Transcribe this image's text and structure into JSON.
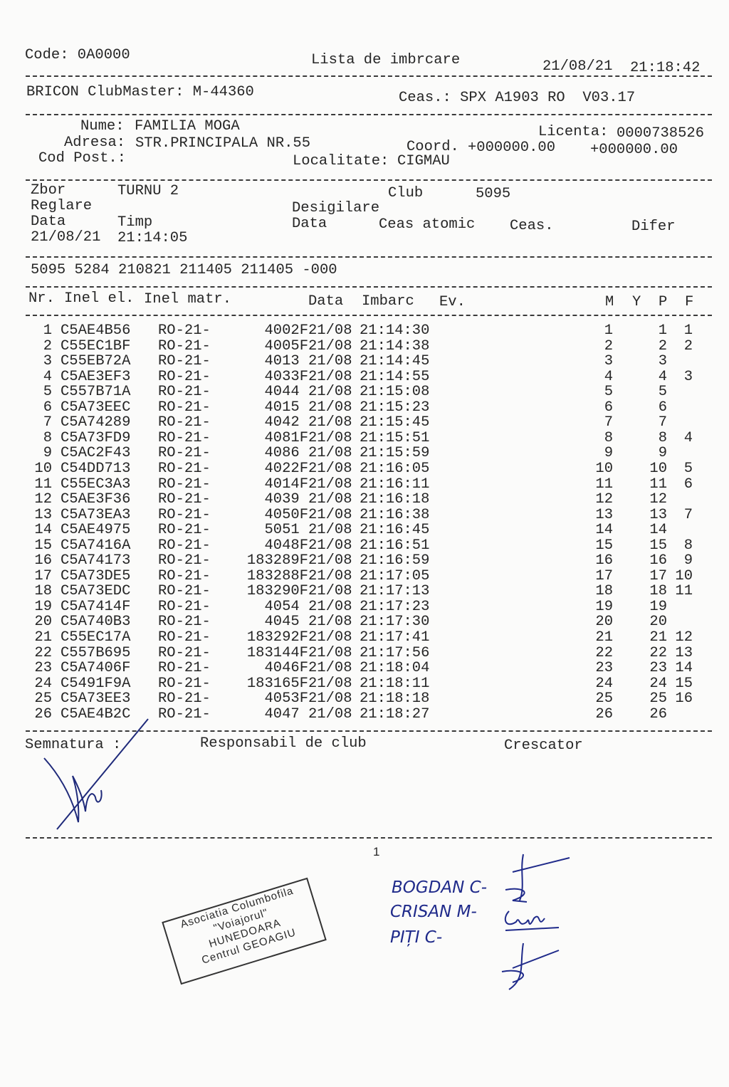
{
  "header": {
    "code": "Code: 0A0000",
    "title": "Lista de imbrcare",
    "date": "21/08/21",
    "time": "21:18:42",
    "clubmaster": "BRICON ClubMaster: M-44360",
    "clock": "Ceas.: SPX A1903 RO  V03.17"
  },
  "owner": {
    "name_label": "Nume:",
    "name": "FAMILIA MOGA",
    "license_label": "Licenta:",
    "license": "0000738526",
    "address_label": "Adresa:",
    "address": "STR.PRINCIPALA NR.55",
    "coord_label": "Coord.",
    "coord_x": "+000000.00",
    "coord_y": "+000000.00",
    "postcode_label": "Cod Post.:",
    "locality_label": "Localitate:",
    "locality": "CIGMAU"
  },
  "flight": {
    "flight_label": "Zbor",
    "flight": "TURNU 2",
    "club_label": "Club",
    "club": "5095",
    "setting_label": "Reglare",
    "unseal_label": "Desigilare",
    "date_label": "Data",
    "time_label": "Timp",
    "unseal_date_label": "Data",
    "atomic_label": "Ceas atomic",
    "clock_label": "Ceas.",
    "diff_label": "Difer",
    "setting_date": "21/08/21",
    "setting_time": "21:14:05",
    "code_line": "5095 5284 210821 211405 211405 -000"
  },
  "table": {
    "columns": [
      "Nr.",
      "Inel el.",
      "Inel matr.",
      "Data",
      "Imbarc",
      "Ev.",
      "M",
      "Y",
      "P",
      "F"
    ],
    "rows": [
      {
        "nr": "1",
        "ring": "C5AE4B56",
        "prefix": "RO-21-",
        "matr": "4002F",
        "date": "21/08",
        "time": "21:14:30",
        "m": "1",
        "p": "1",
        "f": "1"
      },
      {
        "nr": "2",
        "ring": "C55EC1BF",
        "prefix": "RO-21-",
        "matr": "4005F",
        "date": "21/08",
        "time": "21:14:38",
        "m": "2",
        "p": "2",
        "f": "2"
      },
      {
        "nr": "3",
        "ring": "C55EB72A",
        "prefix": "RO-21-",
        "matr": "4013",
        "date": "21/08",
        "time": "21:14:45",
        "m": "3",
        "p": "3",
        "f": ""
      },
      {
        "nr": "4",
        "ring": "C5AE3EF3",
        "prefix": "RO-21-",
        "matr": "4033F",
        "date": "21/08",
        "time": "21:14:55",
        "m": "4",
        "p": "4",
        "f": "3"
      },
      {
        "nr": "5",
        "ring": "C557B71A",
        "prefix": "RO-21-",
        "matr": "4044",
        "date": "21/08",
        "time": "21:15:08",
        "m": "5",
        "p": "5",
        "f": ""
      },
      {
        "nr": "6",
        "ring": "C5A73EEC",
        "prefix": "RO-21-",
        "matr": "4015",
        "date": "21/08",
        "time": "21:15:23",
        "m": "6",
        "p": "6",
        "f": ""
      },
      {
        "nr": "7",
        "ring": "C5A74289",
        "prefix": "RO-21-",
        "matr": "4042",
        "date": "21/08",
        "time": "21:15:45",
        "m": "7",
        "p": "7",
        "f": ""
      },
      {
        "nr": "8",
        "ring": "C5A73FD9",
        "prefix": "RO-21-",
        "matr": "4081F",
        "date": "21/08",
        "time": "21:15:51",
        "m": "8",
        "p": "8",
        "f": "4"
      },
      {
        "nr": "9",
        "ring": "C5AC2F43",
        "prefix": "RO-21-",
        "matr": "4086",
        "date": "21/08",
        "time": "21:15:59",
        "m": "9",
        "p": "9",
        "f": ""
      },
      {
        "nr": "10",
        "ring": "C54DD713",
        "prefix": "RO-21-",
        "matr": "4022F",
        "date": "21/08",
        "time": "21:16:05",
        "m": "10",
        "p": "10",
        "f": "5"
      },
      {
        "nr": "11",
        "ring": "C55EC3A3",
        "prefix": "RO-21-",
        "matr": "4014F",
        "date": "21/08",
        "time": "21:16:11",
        "m": "11",
        "p": "11",
        "f": "6"
      },
      {
        "nr": "12",
        "ring": "C5AE3F36",
        "prefix": "RO-21-",
        "matr": "4039",
        "date": "21/08",
        "time": "21:16:18",
        "m": "12",
        "p": "12",
        "f": ""
      },
      {
        "nr": "13",
        "ring": "C5A73EA3",
        "prefix": "RO-21-",
        "matr": "4050F",
        "date": "21/08",
        "time": "21:16:38",
        "m": "13",
        "p": "13",
        "f": "7"
      },
      {
        "nr": "14",
        "ring": "C5AE4975",
        "prefix": "RO-21-",
        "matr": "5051",
        "date": "21/08",
        "time": "21:16:45",
        "m": "14",
        "p": "14",
        "f": ""
      },
      {
        "nr": "15",
        "ring": "C5A7416A",
        "prefix": "RO-21-",
        "matr": "4048F",
        "date": "21/08",
        "time": "21:16:51",
        "m": "15",
        "p": "15",
        "f": "8"
      },
      {
        "nr": "16",
        "ring": "C5A74173",
        "prefix": "RO-21-",
        "matr": "183289F",
        "date": "21/08",
        "time": "21:16:59",
        "m": "16",
        "p": "16",
        "f": "9"
      },
      {
        "nr": "17",
        "ring": "C5A73DE5",
        "prefix": "RO-21-",
        "matr": "183288F",
        "date": "21/08",
        "time": "21:17:05",
        "m": "17",
        "p": "17",
        "f": "10"
      },
      {
        "nr": "18",
        "ring": "C5A73EDC",
        "prefix": "RO-21-",
        "matr": "183290F",
        "date": "21/08",
        "time": "21:17:13",
        "m": "18",
        "p": "18",
        "f": "11"
      },
      {
        "nr": "19",
        "ring": "C5A7414F",
        "prefix": "RO-21-",
        "matr": "4054",
        "date": "21/08",
        "time": "21:17:23",
        "m": "19",
        "p": "19",
        "f": ""
      },
      {
        "nr": "20",
        "ring": "C5A740B3",
        "prefix": "RO-21-",
        "matr": "4045",
        "date": "21/08",
        "time": "21:17:30",
        "m": "20",
        "p": "20",
        "f": ""
      },
      {
        "nr": "21",
        "ring": "C55EC17A",
        "prefix": "RO-21-",
        "matr": "183292F",
        "date": "21/08",
        "time": "21:17:41",
        "m": "21",
        "p": "21",
        "f": "12"
      },
      {
        "nr": "22",
        "ring": "C557B695",
        "prefix": "RO-21-",
        "matr": "183144F",
        "date": "21/08",
        "time": "21:17:56",
        "m": "22",
        "p": "22",
        "f": "13"
      },
      {
        "nr": "23",
        "ring": "C5A7406F",
        "prefix": "RO-21-",
        "matr": "4046F",
        "date": "21/08",
        "time": "21:18:04",
        "m": "23",
        "p": "23",
        "f": "14"
      },
      {
        "nr": "24",
        "ring": "C5491F9A",
        "prefix": "RO-21-",
        "matr": "183165F",
        "date": "21/08",
        "time": "21:18:11",
        "m": "24",
        "p": "24",
        "f": "15"
      },
      {
        "nr": "25",
        "ring": "C5A73EE3",
        "prefix": "RO-21-",
        "matr": "4053F",
        "date": "21/08",
        "time": "21:18:18",
        "m": "25",
        "p": "25",
        "f": "16"
      },
      {
        "nr": "26",
        "ring": "C5AE4B2C",
        "prefix": "RO-21-",
        "matr": "4047",
        "date": "21/08",
        "time": "21:18:27",
        "m": "26",
        "p": "26",
        "f": ""
      }
    ]
  },
  "footer": {
    "signature_label": "Semnatura :",
    "club_resp_label": "Responsabil de club",
    "breeder_label": "Crescator",
    "page_number": "1"
  },
  "stamp": {
    "lines": [
      "Asociatia Columbofila",
      "\"Voiajorul\"",
      "HUNEDOARA",
      "Centrul GEOAGIU"
    ]
  },
  "handwritten": {
    "names": [
      "BOGDAN C-",
      "CRISAN M-",
      "PIȚI C-"
    ]
  },
  "colors": {
    "ink": "#262626",
    "pen": "#1f2a8a"
  }
}
